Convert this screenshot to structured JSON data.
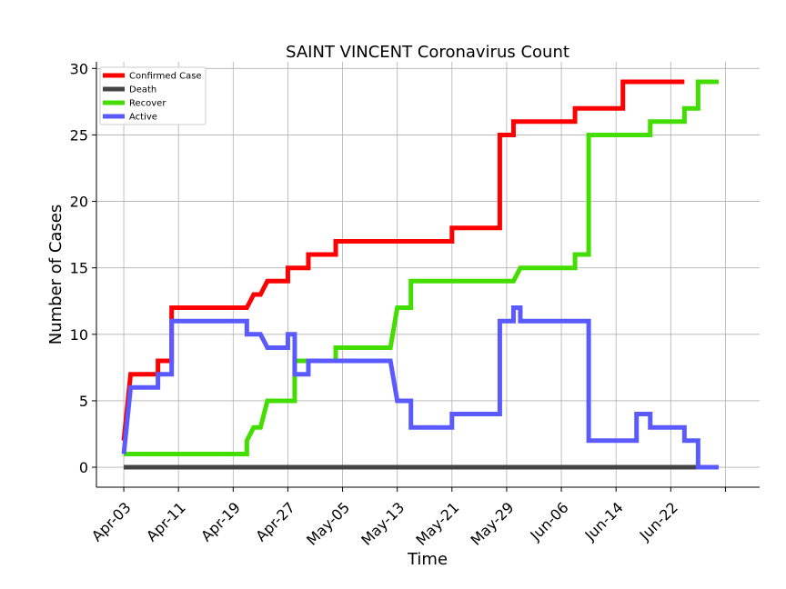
{
  "chart_data": {
    "type": "line",
    "title": "SAINT VINCENT Coronavirus Count",
    "xlabel": "Time",
    "ylabel": "Number of Cases",
    "ylim": [
      -1.5,
      30.5
    ],
    "yticks": [
      0,
      5,
      10,
      15,
      20,
      25,
      30
    ],
    "xlim": [
      "2020-03-30",
      "2020-07-05"
    ],
    "xticks": [
      "Apr-03",
      "Apr-11",
      "Apr-19",
      "Apr-27",
      "May-05",
      "May-13",
      "May-21",
      "May-29",
      "Jun-06",
      "Jun-14",
      "Jun-22",
      ""
    ],
    "xtick_dates": [
      "2020-04-03",
      "2020-04-11",
      "2020-04-19",
      "2020-04-27",
      "2020-05-05",
      "2020-05-13",
      "2020-05-21",
      "2020-05-29",
      "2020-06-06",
      "2020-06-14",
      "2020-06-22",
      "2020-06-30"
    ],
    "grid": true,
    "legend_position": "top-left",
    "series": [
      {
        "name": "Confirmed Case",
        "color": "#ff0000",
        "points": [
          [
            "2020-04-03",
            2
          ],
          [
            "2020-04-04",
            7
          ],
          [
            "2020-04-08",
            7
          ],
          [
            "2020-04-08",
            8
          ],
          [
            "2020-04-10",
            8
          ],
          [
            "2020-04-10",
            12
          ],
          [
            "2020-04-21",
            12
          ],
          [
            "2020-04-22",
            13
          ],
          [
            "2020-04-23",
            13
          ],
          [
            "2020-04-24",
            14
          ],
          [
            "2020-04-27",
            14
          ],
          [
            "2020-04-27",
            15
          ],
          [
            "2020-04-30",
            15
          ],
          [
            "2020-04-30",
            16
          ],
          [
            "2020-05-04",
            16
          ],
          [
            "2020-05-04",
            17
          ],
          [
            "2020-05-21",
            17
          ],
          [
            "2020-05-21",
            18
          ],
          [
            "2020-05-28",
            18
          ],
          [
            "2020-05-28",
            25
          ],
          [
            "2020-05-30",
            25
          ],
          [
            "2020-05-30",
            26
          ],
          [
            "2020-06-08",
            26
          ],
          [
            "2020-06-08",
            27
          ],
          [
            "2020-06-15",
            27
          ],
          [
            "2020-06-15",
            29
          ],
          [
            "2020-06-24",
            29
          ]
        ]
      },
      {
        "name": "Death",
        "color": "#444444",
        "points": [
          [
            "2020-04-03",
            0
          ],
          [
            "2020-06-29",
            0
          ]
        ]
      },
      {
        "name": "Recover",
        "color": "#44dd00",
        "points": [
          [
            "2020-04-03",
            1
          ],
          [
            "2020-04-21",
            1
          ],
          [
            "2020-04-21",
            2
          ],
          [
            "2020-04-22",
            3
          ],
          [
            "2020-04-23",
            3
          ],
          [
            "2020-04-24",
            5
          ],
          [
            "2020-04-28",
            5
          ],
          [
            "2020-04-28",
            8
          ],
          [
            "2020-05-04",
            8
          ],
          [
            "2020-05-04",
            9
          ],
          [
            "2020-05-12",
            9
          ],
          [
            "2020-05-13",
            12
          ],
          [
            "2020-05-15",
            12
          ],
          [
            "2020-05-15",
            14
          ],
          [
            "2020-05-30",
            14
          ],
          [
            "2020-05-31",
            15
          ],
          [
            "2020-06-08",
            15
          ],
          [
            "2020-06-08",
            16
          ],
          [
            "2020-06-10",
            16
          ],
          [
            "2020-06-10",
            25
          ],
          [
            "2020-06-19",
            25
          ],
          [
            "2020-06-19",
            26
          ],
          [
            "2020-06-24",
            26
          ],
          [
            "2020-06-24",
            27
          ],
          [
            "2020-06-26",
            27
          ],
          [
            "2020-06-26",
            29
          ],
          [
            "2020-06-29",
            29
          ]
        ]
      },
      {
        "name": "Active",
        "color": "#5a5aff",
        "points": [
          [
            "2020-04-03",
            1
          ],
          [
            "2020-04-04",
            6
          ],
          [
            "2020-04-08",
            6
          ],
          [
            "2020-04-08",
            7
          ],
          [
            "2020-04-10",
            7
          ],
          [
            "2020-04-10",
            11
          ],
          [
            "2020-04-21",
            11
          ],
          [
            "2020-04-21",
            10
          ],
          [
            "2020-04-23",
            10
          ],
          [
            "2020-04-24",
            9
          ],
          [
            "2020-04-27",
            9
          ],
          [
            "2020-04-27",
            10
          ],
          [
            "2020-04-28",
            10
          ],
          [
            "2020-04-28",
            7
          ],
          [
            "2020-04-30",
            7
          ],
          [
            "2020-04-30",
            8
          ],
          [
            "2020-05-12",
            8
          ],
          [
            "2020-05-13",
            5
          ],
          [
            "2020-05-15",
            5
          ],
          [
            "2020-05-15",
            3
          ],
          [
            "2020-05-21",
            3
          ],
          [
            "2020-05-21",
            4
          ],
          [
            "2020-05-28",
            4
          ],
          [
            "2020-05-28",
            11
          ],
          [
            "2020-05-30",
            11
          ],
          [
            "2020-05-30",
            12
          ],
          [
            "2020-05-31",
            12
          ],
          [
            "2020-05-31",
            11
          ],
          [
            "2020-06-10",
            11
          ],
          [
            "2020-06-10",
            2
          ],
          [
            "2020-06-17",
            2
          ],
          [
            "2020-06-17",
            4
          ],
          [
            "2020-06-19",
            4
          ],
          [
            "2020-06-19",
            3
          ],
          [
            "2020-06-24",
            3
          ],
          [
            "2020-06-24",
            2
          ],
          [
            "2020-06-26",
            2
          ],
          [
            "2020-06-26",
            0
          ],
          [
            "2020-06-29",
            0
          ]
        ]
      }
    ]
  }
}
